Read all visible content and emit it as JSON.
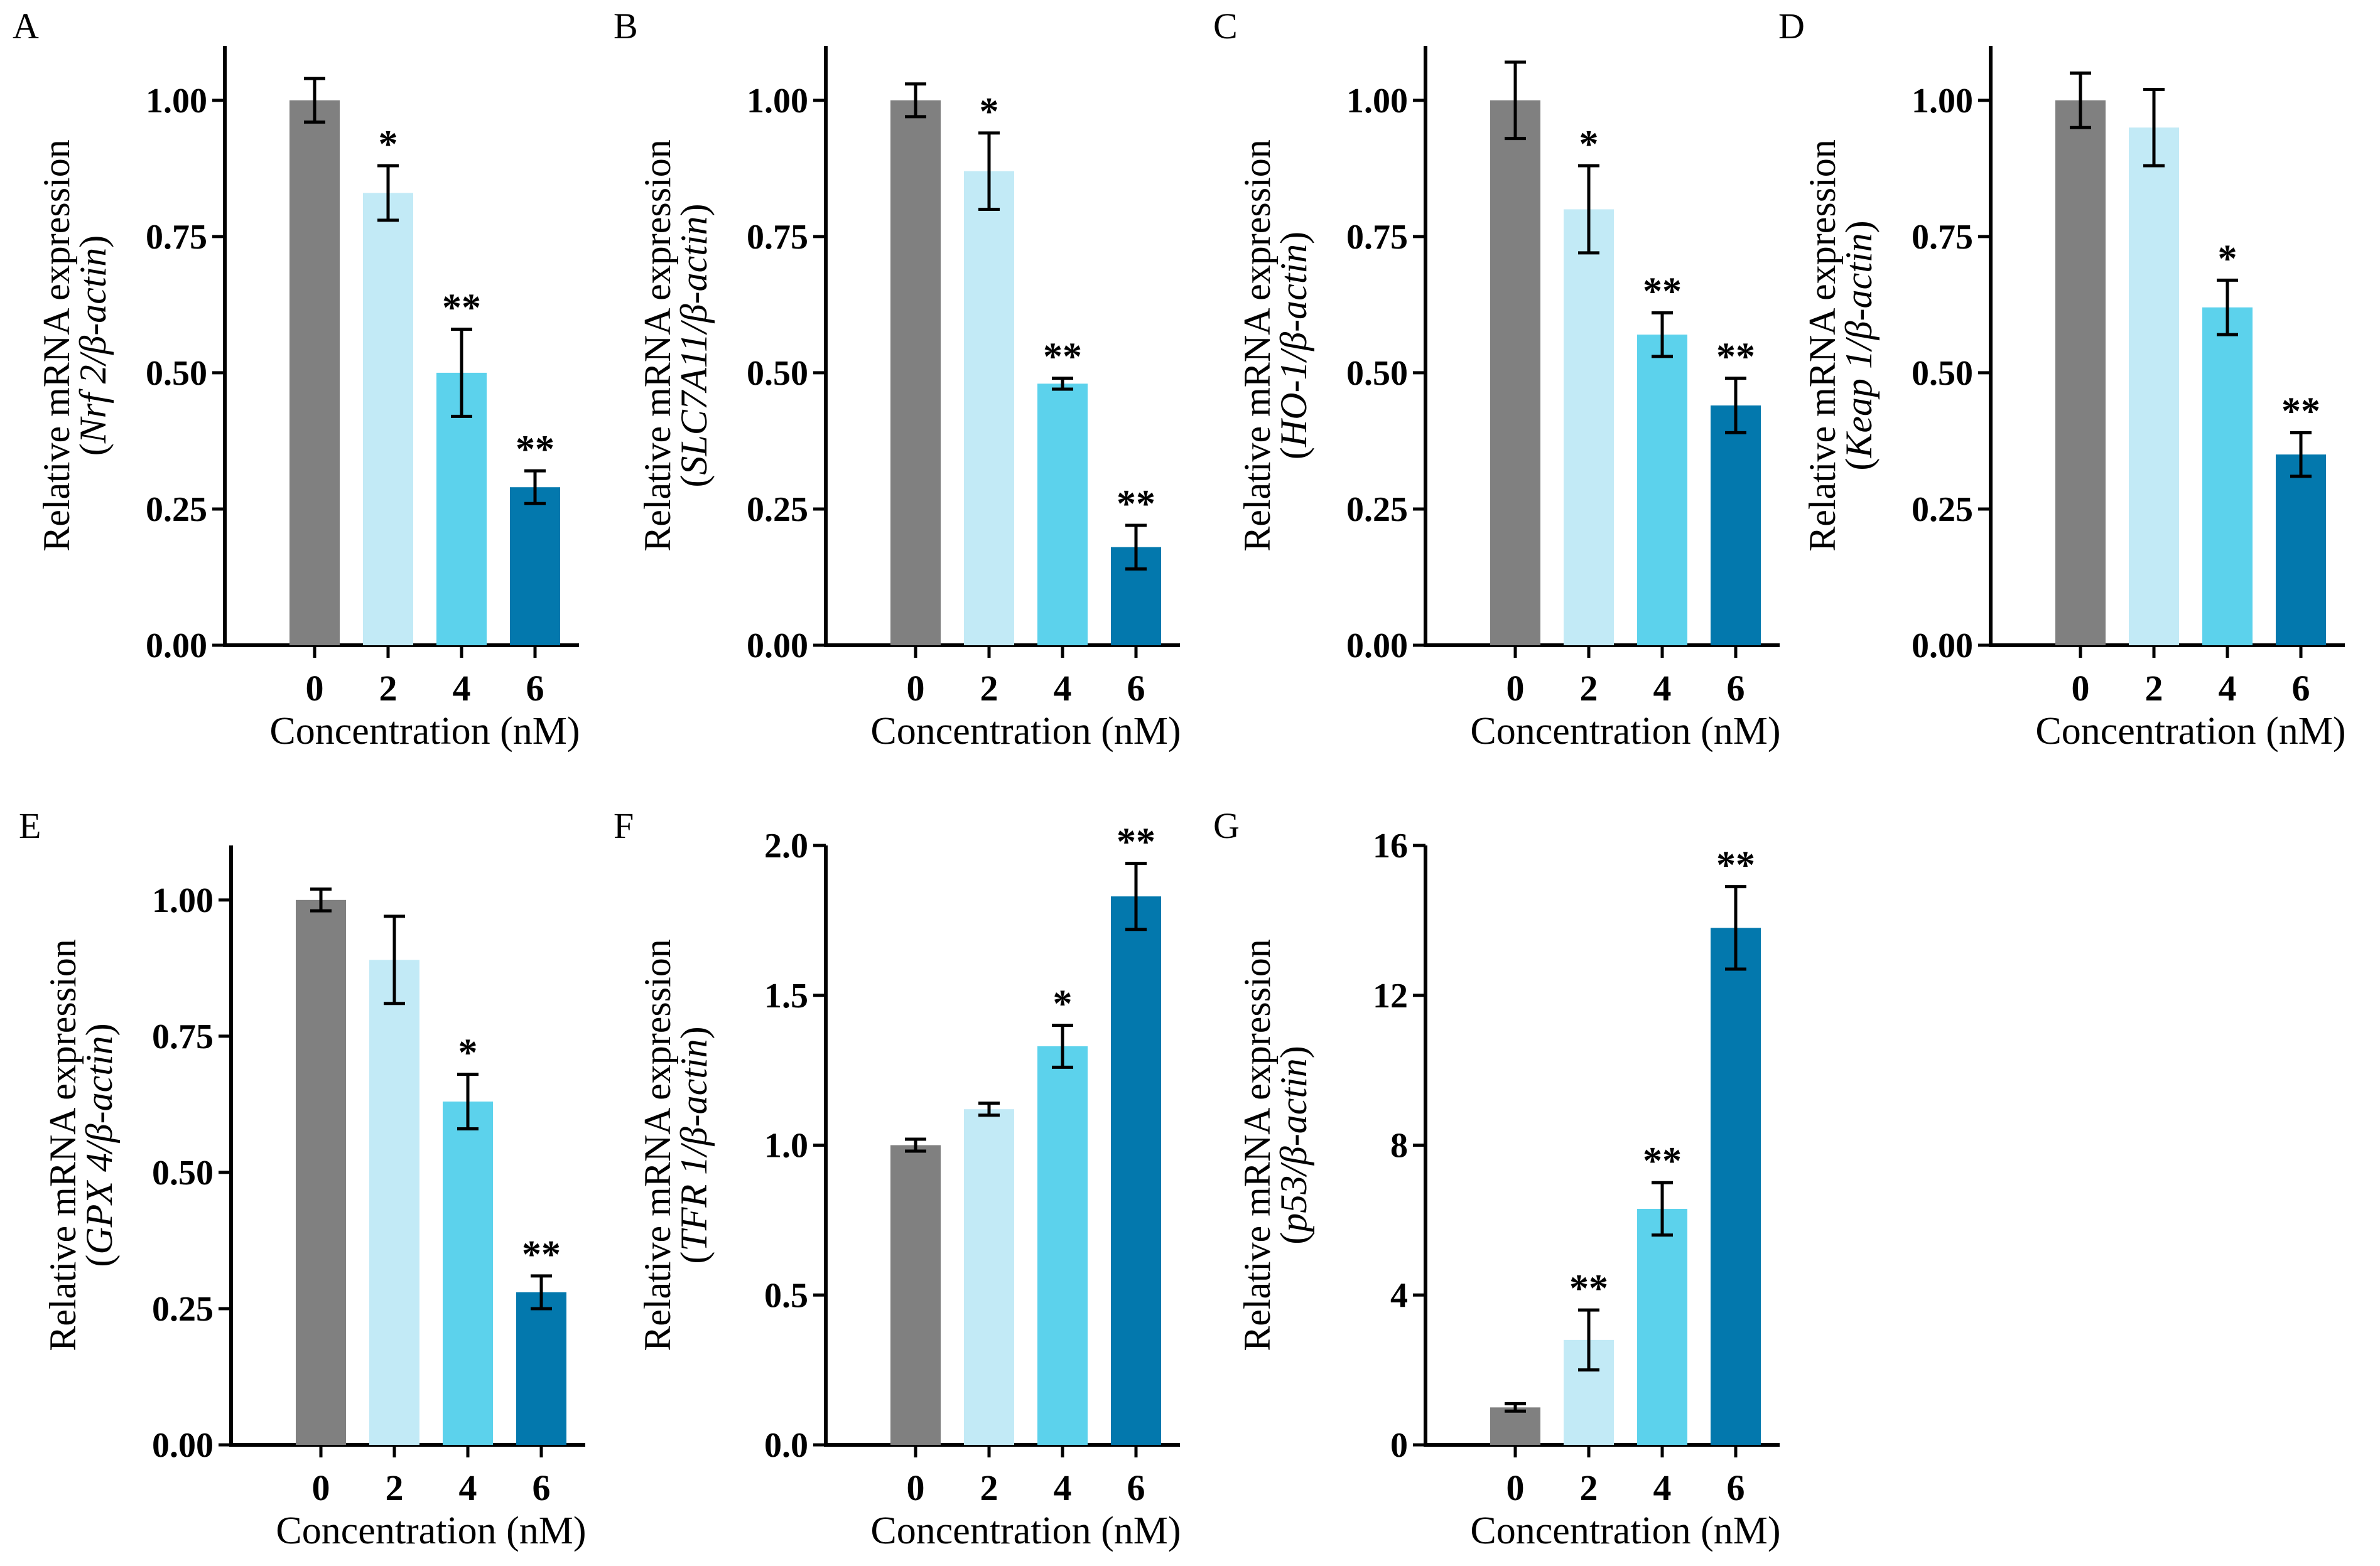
{
  "figure": {
    "x_label": "Concentration (nM)",
    "y_label_prefix": "Relative mRNA expression",
    "palette": {
      "0": "#808080",
      "2": "#c2eaf6",
      "4": "#5cd2ec",
      "6": "#0378ad"
    }
  },
  "chart_data": [
    {
      "panel": "A",
      "type": "bar",
      "ylabel_line1": "Relative mRNA expression",
      "ylabel_gene": "Nrf 2",
      "ylabel_suffix": "/β-actin",
      "xlabel": "Concentration (nM)",
      "categories": [
        "0",
        "2",
        "4",
        "6"
      ],
      "values": [
        1.0,
        0.83,
        0.5,
        0.29
      ],
      "errors": [
        0.04,
        0.05,
        0.08,
        0.03
      ],
      "significance": [
        "",
        "*",
        "**",
        "**"
      ],
      "ylim": [
        0,
        1.1
      ],
      "yticks": [
        0,
        0.25,
        0.5,
        0.75,
        1.0
      ],
      "ytick_labels": [
        "0.00",
        "0.25",
        "0.50",
        "0.75",
        "1.00"
      ]
    },
    {
      "panel": "B",
      "type": "bar",
      "ylabel_line1": "Relative mRNA expression",
      "ylabel_gene": "SLC7A11",
      "ylabel_suffix": "/β-actin",
      "xlabel": "Concentration (nM)",
      "categories": [
        "0",
        "2",
        "4",
        "6"
      ],
      "values": [
        1.0,
        0.87,
        0.48,
        0.18
      ],
      "errors": [
        0.03,
        0.07,
        0.01,
        0.04
      ],
      "significance": [
        "",
        "*",
        "**",
        "**"
      ],
      "ylim": [
        0,
        1.1
      ],
      "yticks": [
        0,
        0.25,
        0.5,
        0.75,
        1.0
      ],
      "ytick_labels": [
        "0.00",
        "0.25",
        "0.50",
        "0.75",
        "1.00"
      ]
    },
    {
      "panel": "C",
      "type": "bar",
      "ylabel_line1": "Relative mRNA expression",
      "ylabel_gene": "HO-1",
      "ylabel_suffix": "/β-actin",
      "xlabel": "Concentration (nM)",
      "categories": [
        "0",
        "2",
        "4",
        "6"
      ],
      "values": [
        1.0,
        0.8,
        0.57,
        0.44
      ],
      "errors": [
        0.07,
        0.08,
        0.04,
        0.05
      ],
      "significance": [
        "",
        "*",
        "**",
        "**"
      ],
      "ylim": [
        0,
        1.1
      ],
      "yticks": [
        0,
        0.25,
        0.5,
        0.75,
        1.0
      ],
      "ytick_labels": [
        "0.00",
        "0.25",
        "0.50",
        "0.75",
        "1.00"
      ]
    },
    {
      "panel": "D",
      "type": "bar",
      "ylabel_line1": "Relative mRNA expression",
      "ylabel_gene": "Keap 1",
      "ylabel_suffix": "/β-actin",
      "xlabel": "Concentration (nM)",
      "categories": [
        "0",
        "2",
        "4",
        "6"
      ],
      "values": [
        1.0,
        0.95,
        0.62,
        0.35
      ],
      "errors": [
        0.05,
        0.07,
        0.05,
        0.04
      ],
      "significance": [
        "",
        "",
        "*",
        "**"
      ],
      "ylim": [
        0,
        1.1
      ],
      "yticks": [
        0,
        0.25,
        0.5,
        0.75,
        1.0
      ],
      "ytick_labels": [
        "0.00",
        "0.25",
        "0.50",
        "0.75",
        "1.00"
      ]
    },
    {
      "panel": "E",
      "type": "bar",
      "ylabel_line1": "Relative mRNA expression",
      "ylabel_gene": "GPX 4",
      "ylabel_suffix": "/β-actin",
      "xlabel": "Concentration (nM)",
      "categories": [
        "0",
        "2",
        "4",
        "6"
      ],
      "values": [
        1.0,
        0.89,
        0.63,
        0.28
      ],
      "errors": [
        0.02,
        0.08,
        0.05,
        0.03
      ],
      "significance": [
        "",
        "",
        "*",
        "**"
      ],
      "ylim": [
        0,
        1.1
      ],
      "yticks": [
        0,
        0.25,
        0.5,
        0.75,
        1.0
      ],
      "ytick_labels": [
        "0.00",
        "0.25",
        "0.50",
        "0.75",
        "1.00"
      ]
    },
    {
      "panel": "F",
      "type": "bar",
      "ylabel_line1": "Relative mRNA expression",
      "ylabel_gene": "TFR 1",
      "ylabel_suffix": "/β-actin",
      "xlabel": "Concentration (nM)",
      "categories": [
        "0",
        "2",
        "4",
        "6"
      ],
      "values": [
        1.0,
        1.12,
        1.33,
        1.83
      ],
      "errors": [
        0.02,
        0.02,
        0.07,
        0.11
      ],
      "significance": [
        "",
        "",
        "*",
        "**"
      ],
      "ylim": [
        0,
        2.0
      ],
      "yticks": [
        0,
        0.5,
        1.0,
        1.5,
        2.0
      ],
      "ytick_labels": [
        "0.0",
        "0.5",
        "1.0",
        "1.5",
        "2.0"
      ]
    },
    {
      "panel": "G",
      "type": "bar",
      "ylabel_line1": "Relative mRNA expression",
      "ylabel_gene": "p53",
      "ylabel_suffix": "/β-actin",
      "xlabel": "Concentration (nM)",
      "categories": [
        "0",
        "2",
        "4",
        "6"
      ],
      "values": [
        1.0,
        2.8,
        6.3,
        13.8
      ],
      "errors": [
        0.1,
        0.8,
        0.7,
        1.1
      ],
      "significance": [
        "",
        "**",
        "**",
        "**"
      ],
      "ylim": [
        0,
        16
      ],
      "yticks": [
        0,
        4,
        8,
        12,
        16
      ],
      "ytick_labels": [
        "0",
        "4",
        "8",
        "12",
        "16"
      ]
    }
  ]
}
